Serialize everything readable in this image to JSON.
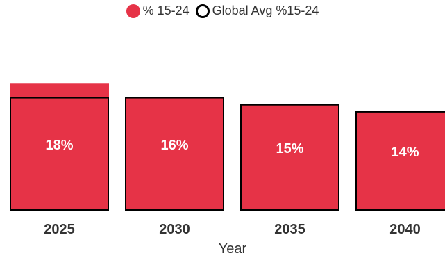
{
  "chart_data": {
    "type": "bar",
    "categories": [
      "2025",
      "2030",
      "2035",
      "2040"
    ],
    "series": [
      {
        "name": "% 15-24",
        "values": [
          18,
          16,
          15,
          14
        ],
        "color": "#e63347"
      },
      {
        "name": "Global Avg %15-24",
        "values": [
          16,
          16,
          15,
          14
        ],
        "color": "#000000"
      }
    ],
    "data_labels": [
      "18%",
      "16%",
      "15%",
      "14%"
    ],
    "xlabel": "Year",
    "ylabel": "",
    "ylim": [
      0,
      19.8
    ],
    "grid": false,
    "legend_position": "top-center"
  }
}
